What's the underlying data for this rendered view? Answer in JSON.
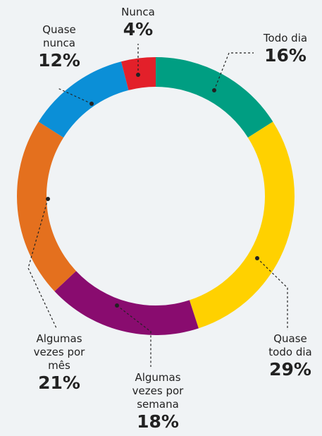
{
  "chart_data": {
    "type": "donut",
    "categories": [
      "Todo dia",
      "Quase todo dia",
      "Algumas vezes por semana",
      "Algumas vezes por mês",
      "Quase nunca",
      "Nunca"
    ],
    "values": [
      16,
      29,
      18,
      21,
      12,
      4
    ],
    "value_labels": [
      "16%",
      "29%",
      "18%",
      "21%",
      "12%",
      "4%"
    ],
    "colors": [
      "#009e82",
      "#ffd100",
      "#890c6f",
      "#e4701e",
      "#0b8fd7",
      "#e3202a"
    ]
  }
}
